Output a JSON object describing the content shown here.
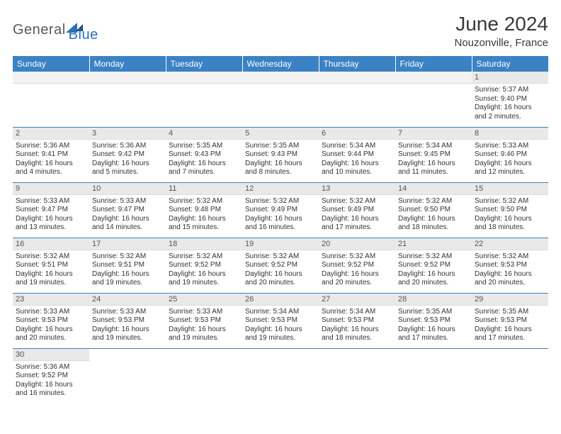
{
  "brand": {
    "word1": "General",
    "word2": "Blue"
  },
  "title": "June 2024",
  "location": "Nouzonville, France",
  "colors": {
    "header_bg": "#3a82c4",
    "header_fg": "#ffffff",
    "daynum_bg": "#e9e9e9",
    "cell_border": "#3a82c4",
    "brand_gray": "#5a5a5a",
    "brand_blue": "#2a71b8"
  },
  "weekdays": [
    "Sunday",
    "Monday",
    "Tuesday",
    "Wednesday",
    "Thursday",
    "Friday",
    "Saturday"
  ],
  "typography": {
    "title_fontsize": 28,
    "location_fontsize": 15,
    "weekday_fontsize": 12,
    "body_fontsize": 10
  },
  "first_weekday_index": 6,
  "days": [
    {
      "n": 1,
      "sunrise": "5:37 AM",
      "sunset": "9:40 PM",
      "daylight": "16 hours and 2 minutes."
    },
    {
      "n": 2,
      "sunrise": "5:36 AM",
      "sunset": "9:41 PM",
      "daylight": "16 hours and 4 minutes."
    },
    {
      "n": 3,
      "sunrise": "5:36 AM",
      "sunset": "9:42 PM",
      "daylight": "16 hours and 5 minutes."
    },
    {
      "n": 4,
      "sunrise": "5:35 AM",
      "sunset": "9:43 PM",
      "daylight": "16 hours and 7 minutes."
    },
    {
      "n": 5,
      "sunrise": "5:35 AM",
      "sunset": "9:43 PM",
      "daylight": "16 hours and 8 minutes."
    },
    {
      "n": 6,
      "sunrise": "5:34 AM",
      "sunset": "9:44 PM",
      "daylight": "16 hours and 10 minutes."
    },
    {
      "n": 7,
      "sunrise": "5:34 AM",
      "sunset": "9:45 PM",
      "daylight": "16 hours and 11 minutes."
    },
    {
      "n": 8,
      "sunrise": "5:33 AM",
      "sunset": "9:46 PM",
      "daylight": "16 hours and 12 minutes."
    },
    {
      "n": 9,
      "sunrise": "5:33 AM",
      "sunset": "9:47 PM",
      "daylight": "16 hours and 13 minutes."
    },
    {
      "n": 10,
      "sunrise": "5:33 AM",
      "sunset": "9:47 PM",
      "daylight": "16 hours and 14 minutes."
    },
    {
      "n": 11,
      "sunrise": "5:32 AM",
      "sunset": "9:48 PM",
      "daylight": "16 hours and 15 minutes."
    },
    {
      "n": 12,
      "sunrise": "5:32 AM",
      "sunset": "9:49 PM",
      "daylight": "16 hours and 16 minutes."
    },
    {
      "n": 13,
      "sunrise": "5:32 AM",
      "sunset": "9:49 PM",
      "daylight": "16 hours and 17 minutes."
    },
    {
      "n": 14,
      "sunrise": "5:32 AM",
      "sunset": "9:50 PM",
      "daylight": "16 hours and 18 minutes."
    },
    {
      "n": 15,
      "sunrise": "5:32 AM",
      "sunset": "9:50 PM",
      "daylight": "16 hours and 18 minutes."
    },
    {
      "n": 16,
      "sunrise": "5:32 AM",
      "sunset": "9:51 PM",
      "daylight": "16 hours and 19 minutes."
    },
    {
      "n": 17,
      "sunrise": "5:32 AM",
      "sunset": "9:51 PM",
      "daylight": "16 hours and 19 minutes."
    },
    {
      "n": 18,
      "sunrise": "5:32 AM",
      "sunset": "9:52 PM",
      "daylight": "16 hours and 19 minutes."
    },
    {
      "n": 19,
      "sunrise": "5:32 AM",
      "sunset": "9:52 PM",
      "daylight": "16 hours and 20 minutes."
    },
    {
      "n": 20,
      "sunrise": "5:32 AM",
      "sunset": "9:52 PM",
      "daylight": "16 hours and 20 minutes."
    },
    {
      "n": 21,
      "sunrise": "5:32 AM",
      "sunset": "9:52 PM",
      "daylight": "16 hours and 20 minutes."
    },
    {
      "n": 22,
      "sunrise": "5:32 AM",
      "sunset": "9:53 PM",
      "daylight": "16 hours and 20 minutes."
    },
    {
      "n": 23,
      "sunrise": "5:33 AM",
      "sunset": "9:53 PM",
      "daylight": "16 hours and 20 minutes."
    },
    {
      "n": 24,
      "sunrise": "5:33 AM",
      "sunset": "9:53 PM",
      "daylight": "16 hours and 19 minutes."
    },
    {
      "n": 25,
      "sunrise": "5:33 AM",
      "sunset": "9:53 PM",
      "daylight": "16 hours and 19 minutes."
    },
    {
      "n": 26,
      "sunrise": "5:34 AM",
      "sunset": "9:53 PM",
      "daylight": "16 hours and 19 minutes."
    },
    {
      "n": 27,
      "sunrise": "5:34 AM",
      "sunset": "9:53 PM",
      "daylight": "16 hours and 18 minutes."
    },
    {
      "n": 28,
      "sunrise": "5:35 AM",
      "sunset": "9:53 PM",
      "daylight": "16 hours and 17 minutes."
    },
    {
      "n": 29,
      "sunrise": "5:35 AM",
      "sunset": "9:53 PM",
      "daylight": "16 hours and 17 minutes."
    },
    {
      "n": 30,
      "sunrise": "5:36 AM",
      "sunset": "9:52 PM",
      "daylight": "16 hours and 16 minutes."
    }
  ],
  "labels": {
    "sunrise": "Sunrise:",
    "sunset": "Sunset:",
    "daylight": "Daylight:"
  }
}
